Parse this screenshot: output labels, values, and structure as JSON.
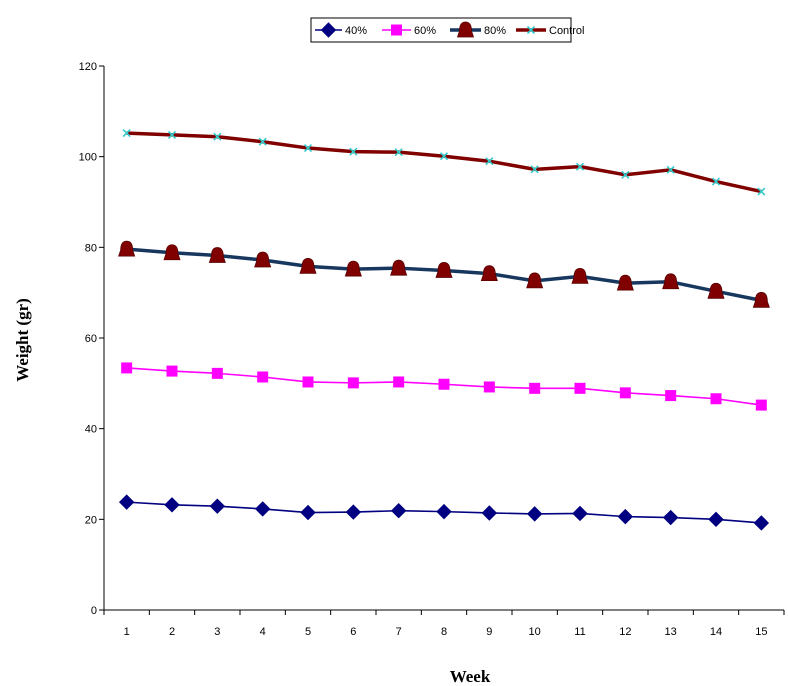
{
  "chart_data": {
    "type": "line",
    "title": "",
    "xlabel": "Week",
    "ylabel": "Weight (gr)",
    "categories": [
      "1",
      "2",
      "3",
      "4",
      "5",
      "6",
      "7",
      "8",
      "9",
      "10",
      "11",
      "12",
      "13",
      "14",
      "15"
    ],
    "ylim": [
      0,
      120
    ],
    "yticks": [
      "0",
      "20",
      "40",
      "60",
      "80",
      "100",
      "120"
    ],
    "grid": false,
    "legend_position": "top",
    "series": [
      {
        "name": "40%",
        "color": "#000080",
        "line_color": "#000080",
        "marker": "diamond",
        "values": [
          23.8,
          23.2,
          22.9,
          22.3,
          21.5,
          21.6,
          21.9,
          21.7,
          21.4,
          21.2,
          21.3,
          20.6,
          20.4,
          20.0,
          19.2
        ]
      },
      {
        "name": "60%",
        "color": "#ff00ff",
        "line_color": "#ff00ff",
        "marker": "square",
        "values": [
          53.4,
          52.7,
          52.2,
          51.4,
          50.3,
          50.1,
          50.3,
          49.8,
          49.2,
          48.9,
          48.9,
          47.9,
          47.3,
          46.6,
          45.2
        ]
      },
      {
        "name": "80%",
        "color": "#800000",
        "line_color": "#17375e",
        "marker": "bell",
        "values": [
          79.6,
          78.8,
          78.2,
          77.2,
          75.8,
          75.2,
          75.4,
          74.9,
          74.2,
          72.6,
          73.6,
          72.1,
          72.4,
          70.3,
          68.3
        ]
      },
      {
        "name": "Control",
        "color": "#33cccc",
        "line_color": "#800000",
        "marker": "star",
        "values": [
          105.2,
          104.8,
          104.4,
          103.3,
          101.9,
          101.1,
          101.0,
          100.1,
          99.0,
          97.2,
          97.8,
          96.0,
          97.1,
          94.5,
          92.3
        ]
      }
    ]
  }
}
